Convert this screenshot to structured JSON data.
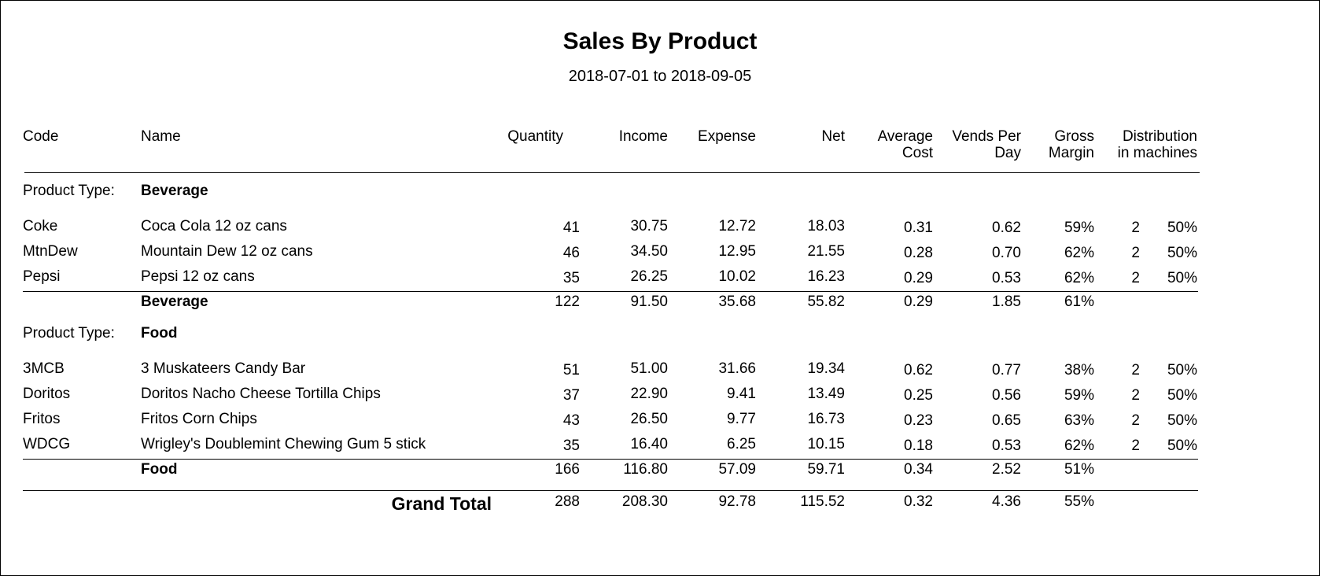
{
  "report": {
    "title": "Sales By Product",
    "date_range": "2018-07-01 to 2018-09-05",
    "product_type_label": "Product Type:",
    "columns": {
      "code": "Code",
      "name": "Name",
      "quantity": "Quantity",
      "income": "Income",
      "expense": "Expense",
      "net": "Net",
      "average_cost_1": "Average",
      "average_cost_2": "Cost",
      "vends_per_day_1": "Vends Per",
      "vends_per_day_2": "Day",
      "gross_margin_1": "Gross",
      "gross_margin_2": "Margin",
      "distribution_1": "Distribution",
      "distribution_2": "in machines"
    },
    "groups": [
      {
        "type": "Beverage",
        "rows": [
          {
            "code": "Coke",
            "name": "Coca Cola 12 oz cans",
            "quantity": "41",
            "income": "30.75",
            "expense": "12.72",
            "net": "18.03",
            "avg_cost": "0.31",
            "vends_per_day": "0.62",
            "gross_margin": "59%",
            "machines": "2",
            "dist_pct": "50%"
          },
          {
            "code": "MtnDew",
            "name": "Mountain Dew 12 oz cans",
            "quantity": "46",
            "income": "34.50",
            "expense": "12.95",
            "net": "21.55",
            "avg_cost": "0.28",
            "vends_per_day": "0.70",
            "gross_margin": "62%",
            "machines": "2",
            "dist_pct": "50%"
          },
          {
            "code": "Pepsi",
            "name": "Pepsi 12 oz cans",
            "quantity": "35",
            "income": "26.25",
            "expense": "10.02",
            "net": "16.23",
            "avg_cost": "0.29",
            "vends_per_day": "0.53",
            "gross_margin": "62%",
            "machines": "2",
            "dist_pct": "50%"
          }
        ],
        "subtotal": {
          "label": "Beverage",
          "quantity": "122",
          "income": "91.50",
          "expense": "35.68",
          "net": "55.82",
          "avg_cost": "0.29",
          "vends_per_day": "1.85",
          "gross_margin": "61%"
        }
      },
      {
        "type": "Food",
        "rows": [
          {
            "code": "3MCB",
            "name": "3 Muskateers Candy Bar",
            "quantity": "51",
            "income": "51.00",
            "expense": "31.66",
            "net": "19.34",
            "avg_cost": "0.62",
            "vends_per_day": "0.77",
            "gross_margin": "38%",
            "machines": "2",
            "dist_pct": "50%"
          },
          {
            "code": "Doritos",
            "name": "Doritos Nacho Cheese Tortilla Chips",
            "quantity": "37",
            "income": "22.90",
            "expense": "9.41",
            "net": "13.49",
            "avg_cost": "0.25",
            "vends_per_day": "0.56",
            "gross_margin": "59%",
            "machines": "2",
            "dist_pct": "50%"
          },
          {
            "code": "Fritos",
            "name": "Fritos Corn Chips",
            "quantity": "43",
            "income": "26.50",
            "expense": "9.77",
            "net": "16.73",
            "avg_cost": "0.23",
            "vends_per_day": "0.65",
            "gross_margin": "63%",
            "machines": "2",
            "dist_pct": "50%"
          },
          {
            "code": "WDCG",
            "name": "Wrigley's Doublemint Chewing Gum 5 stick",
            "quantity": "35",
            "income": "16.40",
            "expense": "6.25",
            "net": "10.15",
            "avg_cost": "0.18",
            "vends_per_day": "0.53",
            "gross_margin": "62%",
            "machines": "2",
            "dist_pct": "50%"
          }
        ],
        "subtotal": {
          "label": "Food",
          "quantity": "166",
          "income": "116.80",
          "expense": "57.09",
          "net": "59.71",
          "avg_cost": "0.34",
          "vends_per_day": "2.52",
          "gross_margin": "51%"
        }
      }
    ],
    "grand_total": {
      "label": "Grand Total",
      "quantity": "288",
      "income": "208.30",
      "expense": "92.78",
      "net": "115.52",
      "avg_cost": "0.32",
      "vends_per_day": "4.36",
      "gross_margin": "55%"
    }
  }
}
